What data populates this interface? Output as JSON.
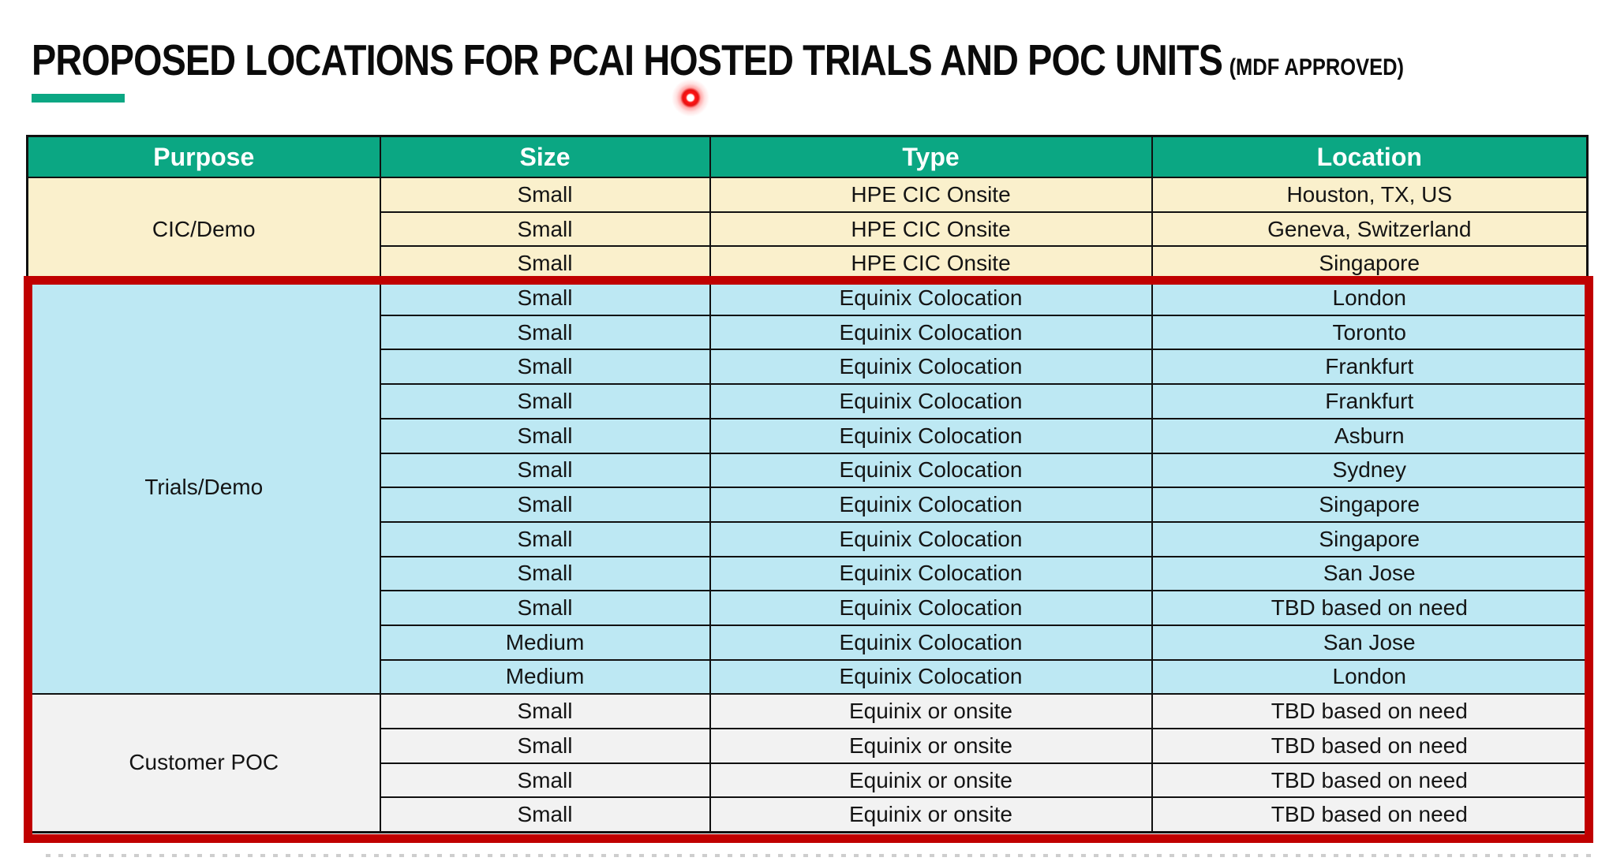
{
  "title": {
    "main": "PROPOSED LOCATIONS FOR PCAI HOSTED TRIALS AND POC UNITS",
    "suffix": "(MDF APPROVED)"
  },
  "colors": {
    "accent_teal": "#0BA783",
    "header_bg": "#0BA783",
    "header_text": "#FFFFFF",
    "cream": "#FAF0CC",
    "light_blue": "#BDE8F3",
    "light_gray": "#F2F2F2",
    "highlight_red": "#C00000",
    "border_black": "#101010"
  },
  "table": {
    "columns": [
      "Purpose",
      "Size",
      "Type",
      "Location"
    ],
    "sections": [
      {
        "purpose": "CIC/Demo",
        "bg": "#FAF0CC",
        "rows": [
          [
            "Small",
            "HPE CIC Onsite",
            "Houston, TX, US"
          ],
          [
            "Small",
            "HPE CIC Onsite",
            "Geneva, Switzerland"
          ],
          [
            "Small",
            "HPE CIC Onsite",
            "Singapore"
          ]
        ]
      },
      {
        "purpose": "Trials/Demo",
        "bg": "#BDE8F3",
        "rows": [
          [
            "Small",
            "Equinix Colocation",
            "London"
          ],
          [
            "Small",
            "Equinix Colocation",
            "Toronto"
          ],
          [
            "Small",
            "Equinix Colocation",
            "Frankfurt"
          ],
          [
            "Small",
            "Equinix Colocation",
            "Frankfurt"
          ],
          [
            "Small",
            "Equinix Colocation",
            "Asburn"
          ],
          [
            "Small",
            "Equinix Colocation",
            "Sydney"
          ],
          [
            "Small",
            "Equinix Colocation",
            "Singapore"
          ],
          [
            "Small",
            "Equinix Colocation",
            "Singapore"
          ],
          [
            "Small",
            "Equinix Colocation",
            "San Jose"
          ],
          [
            "Small",
            "Equinix Colocation",
            "TBD based on need"
          ],
          [
            "Medium",
            "Equinix Colocation",
            "San Jose"
          ],
          [
            "Medium",
            "Equinix Colocation",
            "London"
          ]
        ]
      },
      {
        "purpose": "Customer POC",
        "bg": "#F2F2F2",
        "rows": [
          [
            "Small",
            "Equinix or onsite",
            "TBD based on need"
          ],
          [
            "Small",
            "Equinix or onsite",
            "TBD based on need"
          ],
          [
            "Small",
            "Equinix or onsite",
            "TBD based on need"
          ],
          [
            "Small",
            "Equinix or onsite",
            "TBD based on need"
          ]
        ]
      }
    ]
  },
  "annotations": {
    "red_highlight_box": "surrounds Trials/Demo and Customer POC sections",
    "laser_pointer_dot": "red laser dot below title"
  }
}
